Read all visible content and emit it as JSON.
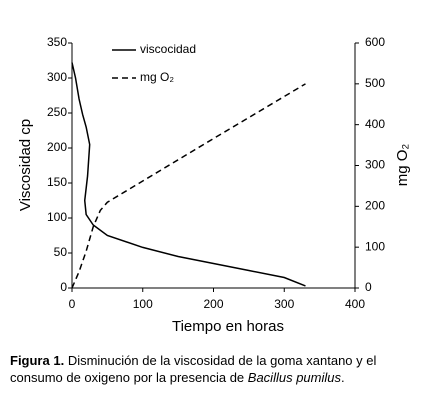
{
  "chart_data": {
    "type": "line",
    "xlabel": "Tiempo en horas",
    "ylabel": "Viscosidad cp",
    "y2label": "mg O₂",
    "xlim": [
      0,
      400
    ],
    "xticks": [
      0,
      100,
      200,
      300,
      400
    ],
    "ylim": [
      0,
      350
    ],
    "yticks": [
      0,
      50,
      100,
      150,
      200,
      250,
      300,
      350
    ],
    "y2lim": [
      0,
      600
    ],
    "y2ticks": [
      0,
      100,
      200,
      300,
      400,
      500,
      600
    ],
    "grid": false,
    "legend": "upper center",
    "series": [
      {
        "name": "viscocidad",
        "color": "#000000",
        "dash": false,
        "x": [
          0,
          5,
          10,
          15,
          20,
          25,
          22,
          18,
          20,
          30,
          50,
          100,
          150,
          200,
          250,
          300,
          330
        ],
        "values": [
          322,
          300,
          270,
          248,
          230,
          205,
          160,
          125,
          105,
          90,
          75,
          58,
          45,
          35,
          25,
          15,
          3
        ]
      },
      {
        "name": "mg O₂",
        "color": "#000000",
        "dash": true,
        "axis": "y2",
        "x": [
          0,
          10,
          20,
          25,
          30,
          40,
          50,
          100,
          200,
          300,
          330
        ],
        "values": [
          0,
          40,
          90,
          120,
          150,
          190,
          210,
          262,
          366,
          469,
          500
        ]
      }
    ],
    "caption": {
      "label": "Figura 1.",
      "text": "Disminución de la viscosidad de la goma xantano y el consumo de oxigeno por la presencia de",
      "species": "Bacillus pumilus",
      "end": "."
    }
  }
}
